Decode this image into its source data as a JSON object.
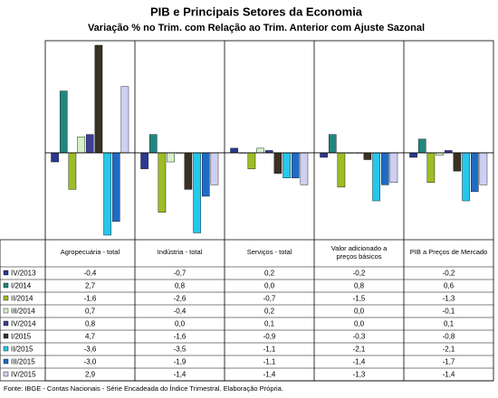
{
  "chart_data": {
    "type": "bar",
    "title": "PIB e Principais Setores da Economia",
    "subtitle": "Variação % no Trim. com Relação ao Trim. Anterior com Ajuste Sazonal",
    "source": "Fonte: IBGE - Contas Nacionais - Série Encadeada do Índice Trimestral. Elaboração Própria.",
    "categories": [
      "Agropecuária - total",
      "Indústria - total",
      "Serviços - total",
      "Valor adicionado a preços básicos",
      "PIB a Preços de Mercado"
    ],
    "series": [
      {
        "name": "IV/2013",
        "color": "#2b3a8f",
        "values": [
          -0.4,
          -0.7,
          0.2,
          -0.2,
          -0.2
        ],
        "value_labels": [
          "-0,4",
          "-0,7",
          "0,2",
          "-0,2",
          "-0,2"
        ]
      },
      {
        "name": "I/2014",
        "color": "#23857f",
        "values": [
          2.7,
          0.8,
          0.0,
          0.8,
          0.6
        ],
        "value_labels": [
          "2,7",
          "0,8",
          "0,0",
          "0,8",
          "0,6"
        ]
      },
      {
        "name": "II/2014",
        "color": "#9cbd25",
        "values": [
          -1.6,
          -2.6,
          -0.7,
          -1.5,
          -1.3
        ],
        "value_labels": [
          "-1,6",
          "-2,6",
          "-0,7",
          "-1,5",
          "-1,3"
        ]
      },
      {
        "name": "III/2014",
        "color": "#d4f0c8",
        "values": [
          0.7,
          -0.4,
          0.2,
          0.0,
          -0.1
        ],
        "value_labels": [
          "0,7",
          "-0,4",
          "0,2",
          "0,0",
          "-0,1"
        ]
      },
      {
        "name": "IV/2014",
        "color": "#3c3f9a",
        "values": [
          0.8,
          0.0,
          0.1,
          0.0,
          0.1
        ],
        "value_labels": [
          "0,8",
          "0,0",
          "0,1",
          "0,0",
          "0,1"
        ]
      },
      {
        "name": "I/2015",
        "color": "#3a3124",
        "values": [
          4.7,
          -1.6,
          -0.9,
          -0.3,
          -0.8
        ],
        "value_labels": [
          "4,7",
          "-1,6",
          "-0,9",
          "-0,3",
          "-0,8"
        ]
      },
      {
        "name": "II/2015",
        "color": "#25c8ec",
        "values": [
          -3.6,
          -3.5,
          -1.1,
          -2.1,
          -2.1
        ],
        "value_labels": [
          "-3,6",
          "-3,5",
          "-1,1",
          "-2,1",
          "-2,1"
        ]
      },
      {
        "name": "III/2015",
        "color": "#1f6cc6",
        "values": [
          -3.0,
          -1.9,
          -1.1,
          -1.4,
          -1.7
        ],
        "value_labels": [
          "-3,0",
          "-1,9",
          "-1,1",
          "-1,4",
          "-1,7"
        ]
      },
      {
        "name": "IV/2015",
        "color": "#cfcff2",
        "values": [
          2.9,
          -1.4,
          -1.4,
          -1.3,
          -1.4
        ],
        "value_labels": [
          "2,9",
          "-1,4",
          "-1,4",
          "-1,3",
          "-1,4"
        ]
      }
    ]
  }
}
